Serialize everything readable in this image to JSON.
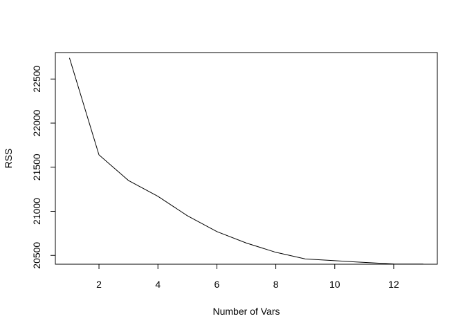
{
  "chart_data": {
    "type": "line",
    "title": "",
    "xlabel": "Number of Vars",
    "ylabel": "RSS",
    "xlim": [
      0.52,
      13.48
    ],
    "ylim": [
      20400,
      22800
    ],
    "x_ticks": [
      2,
      4,
      6,
      8,
      10,
      12
    ],
    "y_ticks": [
      20500,
      21000,
      21500,
      22000,
      22500
    ],
    "grid": false,
    "legend": "none",
    "line_color": "#000000",
    "series": [
      {
        "x": [
          1,
          2,
          3,
          4,
          5,
          6,
          7,
          8,
          9,
          10,
          11,
          12,
          13
        ],
        "values": [
          22740,
          21640,
          21350,
          21170,
          20950,
          20770,
          20640,
          20535,
          20460,
          20440,
          20420,
          20403,
          20402
        ]
      }
    ]
  }
}
